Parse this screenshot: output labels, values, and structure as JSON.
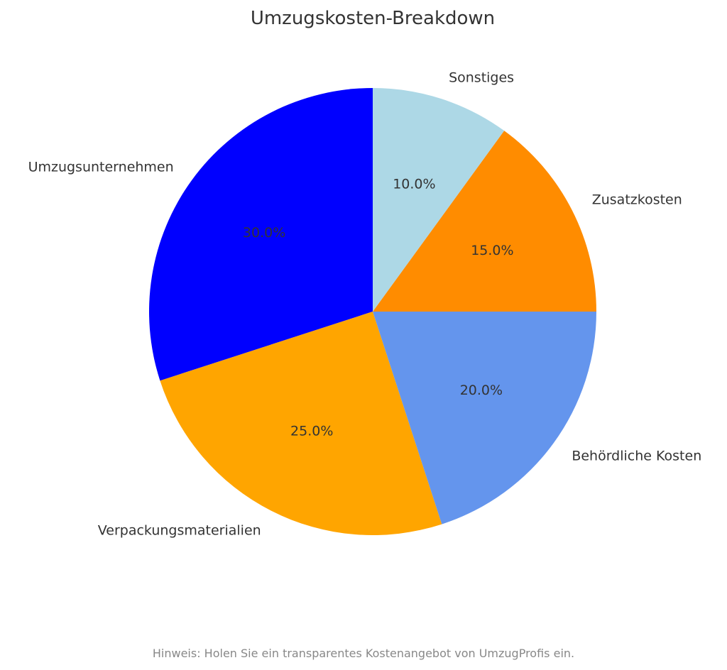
{
  "chart_data": {
    "type": "pie",
    "title": "Umzugskosten-Breakdown",
    "start_angle": 90,
    "direction": "counterclockwise",
    "slices": [
      {
        "label": "Umzugsunternehmen",
        "value": 30,
        "pct_label": "30.0%",
        "color": "#0000ff"
      },
      {
        "label": "Verpackungsmaterialien",
        "value": 25,
        "pct_label": "25.0%",
        "color": "#ffa500"
      },
      {
        "label": "Behördliche Kosten",
        "value": 20,
        "pct_label": "20.0%",
        "color": "#6495ed"
      },
      {
        "label": "Zusatzkosten",
        "value": 15,
        "pct_label": "15.0%",
        "color": "#ff8c00"
      },
      {
        "label": "Sonstiges",
        "value": 10,
        "pct_label": "10.0%",
        "color": "#add8e6"
      }
    ],
    "footnote": "Hinweis: Holen Sie ein transparentes Kostenangebot von UmzugProfis ein."
  }
}
